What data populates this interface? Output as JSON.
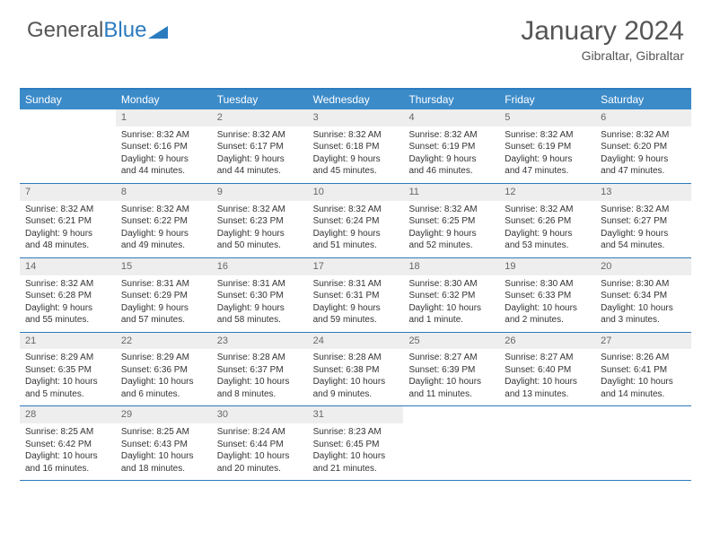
{
  "brand": {
    "part1": "General",
    "part2": "Blue"
  },
  "title": "January 2024",
  "location": "Gibraltar, Gibraltar",
  "colors": {
    "header_bg": "#3c8bc9",
    "border": "#2b7bbf",
    "daynum_bg": "#eeeeee",
    "text": "#333333",
    "muted": "#666666",
    "title": "#555555"
  },
  "dayNames": [
    "Sunday",
    "Monday",
    "Tuesday",
    "Wednesday",
    "Thursday",
    "Friday",
    "Saturday"
  ],
  "weeks": [
    [
      null,
      {
        "n": "1",
        "l1": "Sunrise: 8:32 AM",
        "l2": "Sunset: 6:16 PM",
        "l3": "Daylight: 9 hours",
        "l4": "and 44 minutes."
      },
      {
        "n": "2",
        "l1": "Sunrise: 8:32 AM",
        "l2": "Sunset: 6:17 PM",
        "l3": "Daylight: 9 hours",
        "l4": "and 44 minutes."
      },
      {
        "n": "3",
        "l1": "Sunrise: 8:32 AM",
        "l2": "Sunset: 6:18 PM",
        "l3": "Daylight: 9 hours",
        "l4": "and 45 minutes."
      },
      {
        "n": "4",
        "l1": "Sunrise: 8:32 AM",
        "l2": "Sunset: 6:19 PM",
        "l3": "Daylight: 9 hours",
        "l4": "and 46 minutes."
      },
      {
        "n": "5",
        "l1": "Sunrise: 8:32 AM",
        "l2": "Sunset: 6:19 PM",
        "l3": "Daylight: 9 hours",
        "l4": "and 47 minutes."
      },
      {
        "n": "6",
        "l1": "Sunrise: 8:32 AM",
        "l2": "Sunset: 6:20 PM",
        "l3": "Daylight: 9 hours",
        "l4": "and 47 minutes."
      }
    ],
    [
      {
        "n": "7",
        "l1": "Sunrise: 8:32 AM",
        "l2": "Sunset: 6:21 PM",
        "l3": "Daylight: 9 hours",
        "l4": "and 48 minutes."
      },
      {
        "n": "8",
        "l1": "Sunrise: 8:32 AM",
        "l2": "Sunset: 6:22 PM",
        "l3": "Daylight: 9 hours",
        "l4": "and 49 minutes."
      },
      {
        "n": "9",
        "l1": "Sunrise: 8:32 AM",
        "l2": "Sunset: 6:23 PM",
        "l3": "Daylight: 9 hours",
        "l4": "and 50 minutes."
      },
      {
        "n": "10",
        "l1": "Sunrise: 8:32 AM",
        "l2": "Sunset: 6:24 PM",
        "l3": "Daylight: 9 hours",
        "l4": "and 51 minutes."
      },
      {
        "n": "11",
        "l1": "Sunrise: 8:32 AM",
        "l2": "Sunset: 6:25 PM",
        "l3": "Daylight: 9 hours",
        "l4": "and 52 minutes."
      },
      {
        "n": "12",
        "l1": "Sunrise: 8:32 AM",
        "l2": "Sunset: 6:26 PM",
        "l3": "Daylight: 9 hours",
        "l4": "and 53 minutes."
      },
      {
        "n": "13",
        "l1": "Sunrise: 8:32 AM",
        "l2": "Sunset: 6:27 PM",
        "l3": "Daylight: 9 hours",
        "l4": "and 54 minutes."
      }
    ],
    [
      {
        "n": "14",
        "l1": "Sunrise: 8:32 AM",
        "l2": "Sunset: 6:28 PM",
        "l3": "Daylight: 9 hours",
        "l4": "and 55 minutes."
      },
      {
        "n": "15",
        "l1": "Sunrise: 8:31 AM",
        "l2": "Sunset: 6:29 PM",
        "l3": "Daylight: 9 hours",
        "l4": "and 57 minutes."
      },
      {
        "n": "16",
        "l1": "Sunrise: 8:31 AM",
        "l2": "Sunset: 6:30 PM",
        "l3": "Daylight: 9 hours",
        "l4": "and 58 minutes."
      },
      {
        "n": "17",
        "l1": "Sunrise: 8:31 AM",
        "l2": "Sunset: 6:31 PM",
        "l3": "Daylight: 9 hours",
        "l4": "and 59 minutes."
      },
      {
        "n": "18",
        "l1": "Sunrise: 8:30 AM",
        "l2": "Sunset: 6:32 PM",
        "l3": "Daylight: 10 hours",
        "l4": "and 1 minute."
      },
      {
        "n": "19",
        "l1": "Sunrise: 8:30 AM",
        "l2": "Sunset: 6:33 PM",
        "l3": "Daylight: 10 hours",
        "l4": "and 2 minutes."
      },
      {
        "n": "20",
        "l1": "Sunrise: 8:30 AM",
        "l2": "Sunset: 6:34 PM",
        "l3": "Daylight: 10 hours",
        "l4": "and 3 minutes."
      }
    ],
    [
      {
        "n": "21",
        "l1": "Sunrise: 8:29 AM",
        "l2": "Sunset: 6:35 PM",
        "l3": "Daylight: 10 hours",
        "l4": "and 5 minutes."
      },
      {
        "n": "22",
        "l1": "Sunrise: 8:29 AM",
        "l2": "Sunset: 6:36 PM",
        "l3": "Daylight: 10 hours",
        "l4": "and 6 minutes."
      },
      {
        "n": "23",
        "l1": "Sunrise: 8:28 AM",
        "l2": "Sunset: 6:37 PM",
        "l3": "Daylight: 10 hours",
        "l4": "and 8 minutes."
      },
      {
        "n": "24",
        "l1": "Sunrise: 8:28 AM",
        "l2": "Sunset: 6:38 PM",
        "l3": "Daylight: 10 hours",
        "l4": "and 9 minutes."
      },
      {
        "n": "25",
        "l1": "Sunrise: 8:27 AM",
        "l2": "Sunset: 6:39 PM",
        "l3": "Daylight: 10 hours",
        "l4": "and 11 minutes."
      },
      {
        "n": "26",
        "l1": "Sunrise: 8:27 AM",
        "l2": "Sunset: 6:40 PM",
        "l3": "Daylight: 10 hours",
        "l4": "and 13 minutes."
      },
      {
        "n": "27",
        "l1": "Sunrise: 8:26 AM",
        "l2": "Sunset: 6:41 PM",
        "l3": "Daylight: 10 hours",
        "l4": "and 14 minutes."
      }
    ],
    [
      {
        "n": "28",
        "l1": "Sunrise: 8:25 AM",
        "l2": "Sunset: 6:42 PM",
        "l3": "Daylight: 10 hours",
        "l4": "and 16 minutes."
      },
      {
        "n": "29",
        "l1": "Sunrise: 8:25 AM",
        "l2": "Sunset: 6:43 PM",
        "l3": "Daylight: 10 hours",
        "l4": "and 18 minutes."
      },
      {
        "n": "30",
        "l1": "Sunrise: 8:24 AM",
        "l2": "Sunset: 6:44 PM",
        "l3": "Daylight: 10 hours",
        "l4": "and 20 minutes."
      },
      {
        "n": "31",
        "l1": "Sunrise: 8:23 AM",
        "l2": "Sunset: 6:45 PM",
        "l3": "Daylight: 10 hours",
        "l4": "and 21 minutes."
      },
      null,
      null,
      null
    ]
  ]
}
